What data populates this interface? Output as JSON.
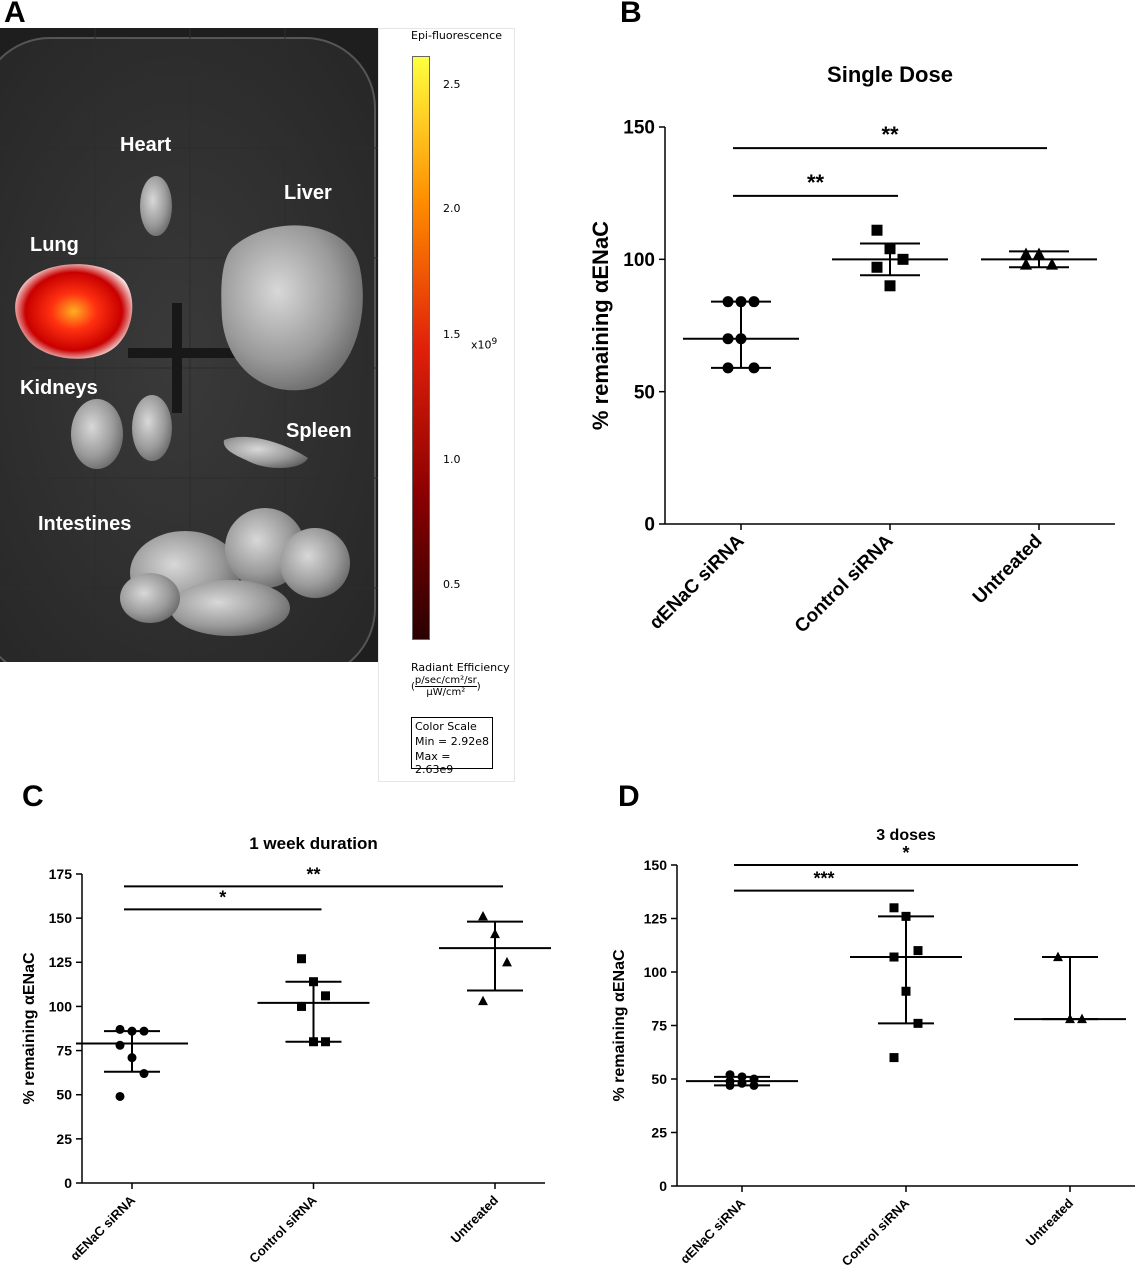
{
  "panel_letters": {
    "a": "A",
    "b": "B",
    "c": "C",
    "d": "D"
  },
  "panel_a": {
    "organs": {
      "heart": "Heart",
      "liver": "Liver",
      "lung": "Lung",
      "kidneys": "Kidneys",
      "spleen": "Spleen",
      "intestines": "Intestines"
    },
    "colorbar": {
      "title": "Epi-fluorescence",
      "ticks": [
        "2.5",
        "2.0",
        "1.5",
        "1.0",
        "0.5"
      ],
      "multiplier": "x10",
      "multiplier_exp": "9",
      "unit_label": "Radiant Efficiency",
      "unit_num": "p/sec/cm²/sr",
      "unit_den": "µW/cm²",
      "scale_title": "Color Scale",
      "scale_min": "Min = 2.92e8",
      "scale_max": "Max = 2.63e9",
      "colors": [
        "#2a0000",
        "#8b0000",
        "#e0200a",
        "#ff8c00",
        "#ffff40"
      ]
    }
  },
  "chart_data": [
    {
      "panel": "B",
      "type": "scatter",
      "title": "Single  Dose",
      "ylabel": "% remaining αENaC",
      "xlabel": "",
      "categories": [
        "αENaC siRNA",
        "Control siRNA",
        "Untreated"
      ],
      "ylim": [
        0,
        150
      ],
      "yticks": [
        0,
        50,
        100,
        150
      ],
      "markers": [
        "circle",
        "square",
        "triangle"
      ],
      "points": [
        [
          84,
          84,
          84,
          70,
          70,
          59,
          59
        ],
        [
          111,
          104,
          100,
          97,
          90
        ],
        [
          102,
          102,
          98,
          98
        ]
      ],
      "mean": [
        70,
        100,
        100
      ],
      "error_low": [
        59,
        94,
        97
      ],
      "error_high": [
        84,
        106,
        103
      ],
      "significance": [
        {
          "from": 0,
          "to": 1,
          "y": 124,
          "label": "**"
        },
        {
          "from": 0,
          "to": 2,
          "y": 142,
          "label": "**"
        }
      ]
    },
    {
      "panel": "C",
      "type": "scatter",
      "title": "1 week duration",
      "ylabel": "% remaining αENaC",
      "xlabel": "",
      "categories": [
        "αENaC siRNA",
        "Control siRNA",
        "Untreated"
      ],
      "ylim": [
        0,
        175
      ],
      "yticks": [
        0,
        25,
        50,
        75,
        100,
        125,
        150,
        175
      ],
      "markers": [
        "circle",
        "square",
        "triangle"
      ],
      "points": [
        [
          87,
          86,
          86,
          78,
          71,
          62,
          49
        ],
        [
          127,
          114,
          106,
          100,
          80,
          80
        ],
        [
          151,
          141,
          125,
          103
        ]
      ],
      "mean": [
        79,
        102,
        133
      ],
      "error_low": [
        63,
        80,
        109
      ],
      "error_high": [
        86,
        114,
        148
      ],
      "significance": [
        {
          "from": 0,
          "to": 1,
          "y": 155,
          "label": "*"
        },
        {
          "from": 0,
          "to": 2,
          "y": 168,
          "label": "**"
        }
      ]
    },
    {
      "panel": "D",
      "type": "scatter",
      "title": "3 doses",
      "ylabel": "% remaining αENaC",
      "xlabel": "",
      "categories": [
        "αENaC siRNA",
        "Control siRNA",
        "Untreated"
      ],
      "ylim": [
        0,
        150
      ],
      "yticks": [
        0,
        25,
        50,
        75,
        100,
        125,
        150
      ],
      "markers": [
        "circle",
        "square",
        "triangle"
      ],
      "points": [
        [
          52,
          51,
          50,
          49,
          48,
          47,
          47
        ],
        [
          130,
          126,
          110,
          107,
          91,
          76,
          60
        ],
        [
          107,
          78,
          78
        ]
      ],
      "mean": [
        49,
        107,
        78
      ],
      "error_low": [
        47,
        76,
        78
      ],
      "error_high": [
        51,
        126,
        107
      ],
      "significance": [
        {
          "from": 0,
          "to": 1,
          "y": 138,
          "label": "***"
        },
        {
          "from": 0,
          "to": 2,
          "y": 150,
          "label": "*"
        }
      ]
    }
  ]
}
